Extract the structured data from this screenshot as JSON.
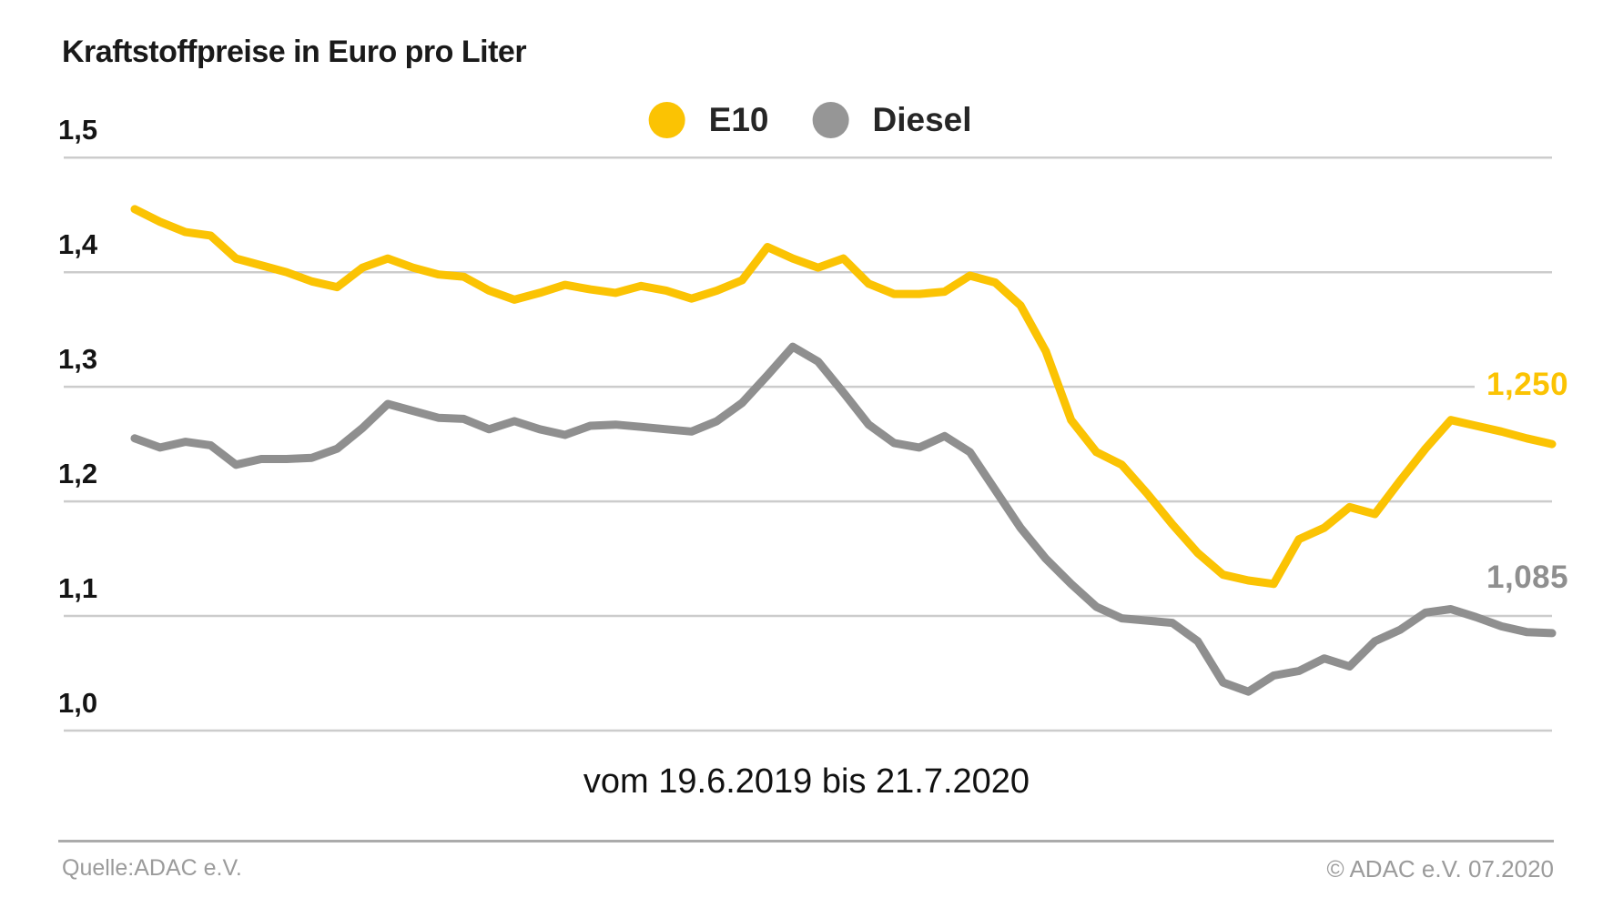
{
  "title": "Kraftstoffpreise in Euro pro Liter",
  "legend": [
    {
      "label": "E10",
      "color": "#fbc303"
    },
    {
      "label": "Diesel",
      "color": "#969696"
    }
  ],
  "chart_data": {
    "type": "line",
    "title": "Kraftstoffpreise in Euro pro Liter",
    "caption": "vom 19.6.2019 bis 21.7.2020",
    "x_start": "19.6.2019",
    "x_end": "21.7.2020",
    "x_unit": "weekly readings",
    "ylabel": "Euro pro Liter",
    "ylim": [
      0.955,
      1.52
    ],
    "grid": true,
    "legend_position": "top-center",
    "yticks": [
      {
        "label": "1,5",
        "value": 1.5
      },
      {
        "label": "1,4",
        "value": 1.4
      },
      {
        "label": "1,3",
        "value": 1.3
      },
      {
        "label": "1,2",
        "value": 1.2
      },
      {
        "label": "1,1",
        "value": 1.1
      },
      {
        "label": "1,0",
        "value": 1.0
      }
    ],
    "series": [
      {
        "name": "E10",
        "color": "#fbc303",
        "end_label": "1,250",
        "end_value": 1.25,
        "values": [
          1.455,
          1.444,
          1.435,
          1.432,
          1.412,
          1.406,
          1.4,
          1.392,
          1.387,
          1.404,
          1.412,
          1.404,
          1.398,
          1.396,
          1.384,
          1.376,
          1.382,
          1.389,
          1.385,
          1.382,
          1.388,
          1.384,
          1.377,
          1.384,
          1.393,
          1.422,
          1.412,
          1.404,
          1.412,
          1.39,
          1.381,
          1.381,
          1.383,
          1.397,
          1.391,
          1.371,
          1.331,
          1.271,
          1.243,
          1.232,
          1.207,
          1.18,
          1.155,
          1.136,
          1.131,
          1.128,
          1.167,
          1.177,
          1.195,
          1.189,
          1.218,
          1.246,
          1.271,
          1.266,
          1.261,
          1.255,
          1.25
        ]
      },
      {
        "name": "Diesel",
        "color": "#8f8f8f",
        "end_label": "1,085",
        "end_value": 1.085,
        "values": [
          1.255,
          1.247,
          1.252,
          1.249,
          1.232,
          1.237,
          1.237,
          1.238,
          1.246,
          1.264,
          1.285,
          1.279,
          1.273,
          1.272,
          1.263,
          1.27,
          1.263,
          1.258,
          1.266,
          1.267,
          1.265,
          1.263,
          1.261,
          1.27,
          1.286,
          1.31,
          1.335,
          1.322,
          1.295,
          1.267,
          1.251,
          1.247,
          1.257,
          1.243,
          1.21,
          1.177,
          1.15,
          1.128,
          1.108,
          1.098,
          1.096,
          1.094,
          1.078,
          1.042,
          1.034,
          1.048,
          1.052,
          1.063,
          1.056,
          1.078,
          1.088,
          1.103,
          1.106,
          1.099,
          1.091,
          1.086,
          1.085
        ]
      }
    ],
    "gridline_color": "#cccccc"
  },
  "footer": {
    "source": "Quelle:ADAC e.V.",
    "copyright": "© ADAC e.V. 07.2020"
  }
}
